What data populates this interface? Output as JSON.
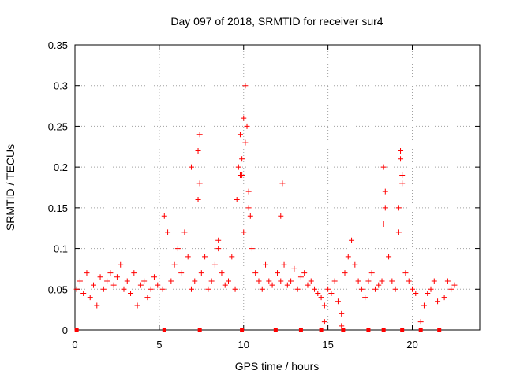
{
  "chart_data": {
    "type": "scatter",
    "title": "Day 097 of 2018, SRMTID for receiver sur4",
    "xlabel": "GPS time / hours",
    "ylabel": "SRMTID / TECUs",
    "xlim": [
      0,
      24
    ],
    "ylim": [
      0,
      0.35
    ],
    "xticks": [
      0,
      5,
      10,
      15,
      20
    ],
    "xtick_labels": [
      "0",
      "5",
      "10",
      "15",
      "20"
    ],
    "yticks": [
      0,
      0.05,
      0.1,
      0.15,
      0.2,
      0.25,
      0.3,
      0.35
    ],
    "ytick_labels": [
      "0",
      "0.05",
      "0.1",
      "0.15",
      "0.2",
      "0.25",
      "0.3",
      "0.35"
    ],
    "grid": true,
    "marker": "+",
    "color": "#ff0000",
    "series": [
      {
        "name": "SRMTID",
        "x": [
          0.1,
          0.3,
          0.5,
          0.7,
          0.9,
          1.1,
          1.3,
          1.5,
          1.7,
          1.9,
          2.1,
          2.3,
          2.5,
          2.7,
          2.9,
          3.1,
          3.3,
          3.5,
          3.7,
          3.9,
          4.1,
          4.3,
          4.5,
          4.7,
          4.9,
          5.2,
          5.3,
          5.5,
          5.7,
          5.9,
          6.1,
          6.3,
          6.5,
          6.7,
          6.9,
          7.1,
          7.3,
          7.4,
          7.5,
          7.7,
          7.9,
          8.1,
          8.3,
          8.5,
          8.7,
          8.9,
          9.1,
          9.3,
          9.5,
          9.6,
          9.7,
          9.8,
          9.9,
          10.0,
          10.1,
          10.2,
          10.3,
          10.4,
          10.5,
          10.7,
          10.9,
          11.1,
          11.3,
          11.5,
          11.7,
          12.0,
          12.2,
          12.4,
          12.6,
          12.8,
          13.0,
          13.2,
          13.4,
          13.6,
          13.8,
          14.0,
          14.2,
          14.4,
          14.6,
          14.8,
          15.0,
          15.2,
          15.4,
          15.6,
          15.8,
          16.0,
          16.2,
          16.4,
          16.6,
          16.8,
          17.0,
          17.2,
          17.4,
          17.6,
          17.8,
          18.0,
          18.2,
          18.3,
          18.4,
          18.6,
          18.8,
          19.0,
          19.2,
          19.3,
          19.4,
          19.6,
          19.8,
          20.0,
          20.2,
          20.5,
          20.7,
          20.9,
          21.1,
          21.3,
          21.5,
          21.9,
          22.1,
          22.3,
          22.5,
          10.0,
          10.1,
          9.8,
          9.9,
          10.3,
          7.4,
          7.3,
          12.3,
          12.2,
          18.4,
          18.3,
          19.3,
          19.4,
          19.2,
          6.9,
          8.5,
          15.8,
          14.8
        ],
        "y": [
          0.05,
          0.06,
          0.045,
          0.07,
          0.04,
          0.055,
          0.03,
          0.065,
          0.05,
          0.06,
          0.07,
          0.055,
          0.065,
          0.08,
          0.05,
          0.06,
          0.045,
          0.07,
          0.03,
          0.055,
          0.06,
          0.04,
          0.05,
          0.065,
          0.055,
          0.05,
          0.14,
          0.12,
          0.06,
          0.08,
          0.1,
          0.07,
          0.12,
          0.09,
          0.05,
          0.06,
          0.16,
          0.18,
          0.07,
          0.09,
          0.05,
          0.06,
          0.08,
          0.1,
          0.07,
          0.055,
          0.06,
          0.09,
          0.05,
          0.16,
          0.2,
          0.24,
          0.19,
          0.12,
          0.3,
          0.25,
          0.17,
          0.14,
          0.1,
          0.07,
          0.06,
          0.05,
          0.08,
          0.06,
          0.055,
          0.07,
          0.06,
          0.08,
          0.055,
          0.06,
          0.075,
          0.05,
          0.065,
          0.07,
          0.055,
          0.06,
          0.05,
          0.045,
          0.04,
          0.03,
          0.05,
          0.045,
          0.06,
          0.035,
          0.02,
          0.07,
          0.09,
          0.11,
          0.08,
          0.06,
          0.05,
          0.04,
          0.06,
          0.07,
          0.05,
          0.055,
          0.06,
          0.2,
          0.15,
          0.09,
          0.06,
          0.05,
          0.12,
          0.22,
          0.18,
          0.07,
          0.06,
          0.05,
          0.045,
          0.01,
          0.03,
          0.045,
          0.05,
          0.06,
          0.035,
          0.04,
          0.06,
          0.05,
          0.055,
          0.26,
          0.23,
          0.19,
          0.21,
          0.15,
          0.24,
          0.22,
          0.18,
          0.14,
          0.17,
          0.13,
          0.21,
          0.19,
          0.15,
          0.2,
          0.11,
          0.005,
          0.01
        ]
      }
    ],
    "zero_markers_x": [
      0.1,
      5.3,
      7.4,
      9.9,
      11.9,
      13.4,
      14.6,
      15.9,
      17.4,
      18.3,
      19.4,
      20.5,
      21.6
    ]
  }
}
